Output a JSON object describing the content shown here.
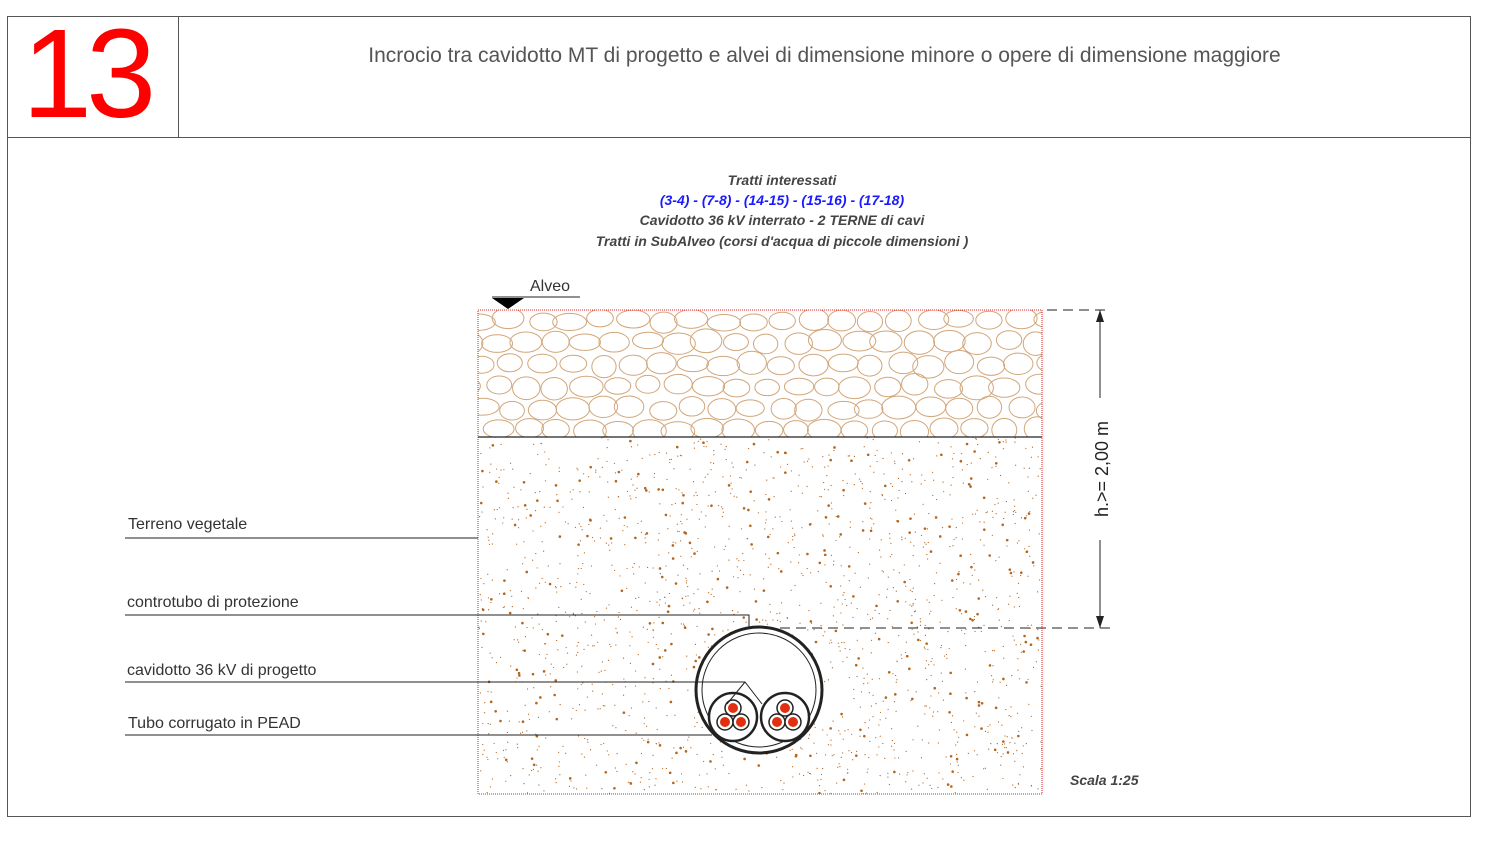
{
  "header": {
    "number": "13",
    "title": "Incrocio tra cavidotto MT di progetto e alvei di dimensione minore o opere di dimensione maggiore"
  },
  "description": {
    "line1": "Tratti interessati",
    "line2": "(3-4) - (7-8) - (14-15) - (15-16) - (17-18)",
    "line3": "Cavidotto 36 kV interrato - 2 TERNE di cavi",
    "line4": "Tratti in SubAlveo (corsi d'acqua di piccole dimensioni )"
  },
  "labels": {
    "alveo": "Alveo",
    "terreno": "Terreno vegetale",
    "controtubo": "controtubo di protezione",
    "cavidotto": "cavidotto 36 kV di progetto",
    "tubo": "Tubo corrugato in PEAD",
    "dimension": "h.>= 2,00 m",
    "scale": "Scala 1:25"
  },
  "colors": {
    "number": "#ff0000",
    "route_text": "#1a1aff",
    "stones": "#d2a679",
    "soil_dots": "#b5651d",
    "section_border": "#e02020",
    "cable_core": "#e03010"
  }
}
